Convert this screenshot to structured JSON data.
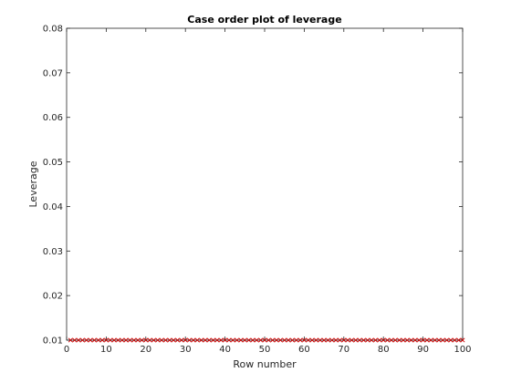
{
  "chart_data": {
    "type": "scatter",
    "title": "Case order plot of leverage",
    "xlabel": "Row number",
    "ylabel": "Leverage",
    "xlim": [
      0,
      100
    ],
    "ylim": [
      0.01,
      0.08
    ],
    "xticks": [
      0,
      10,
      20,
      30,
      40,
      50,
      60,
      70,
      80,
      90,
      100
    ],
    "yticks": [
      0.01,
      0.02,
      0.03,
      0.04,
      0.05,
      0.06,
      0.07,
      0.08
    ],
    "ytick_labels": [
      "0.01",
      "0.02",
      "0.03",
      "0.04",
      "0.05",
      "0.06",
      "0.07",
      "0.08"
    ],
    "grid": false,
    "marker": "x",
    "series": [
      {
        "x_start": 1,
        "x_end": 100,
        "y_constant": 0.01,
        "color": "#cc0000"
      }
    ]
  }
}
